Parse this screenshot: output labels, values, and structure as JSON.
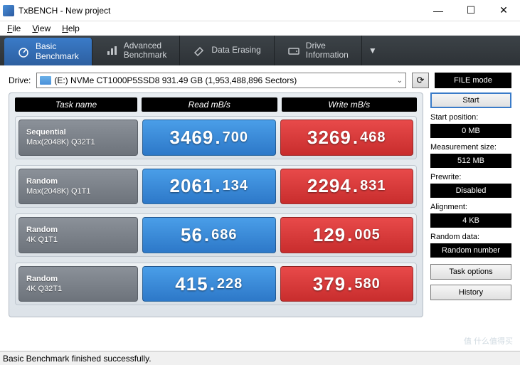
{
  "window": {
    "title": "TxBENCH - New project"
  },
  "menu": {
    "file": "File",
    "view": "View",
    "help": "Help"
  },
  "tabs": {
    "basic": "Basic\nBenchmark",
    "advanced": "Advanced\nBenchmark",
    "erasing": "Data Erasing",
    "drive": "Drive\nInformation"
  },
  "drive": {
    "label": "Drive:",
    "value": "(E:) NVMe CT1000P5SSD8  931.49 GB (1,953,488,896 Sectors)",
    "mode_button": "FILE mode"
  },
  "headers": {
    "task": "Task name",
    "read": "Read mB/s",
    "write": "Write mB/s"
  },
  "rows": [
    {
      "name1": "Sequential",
      "name2": "Max(2048K) Q32T1",
      "read_int": "3469",
      "read_frac": "700",
      "write_int": "3269",
      "write_frac": "468"
    },
    {
      "name1": "Random",
      "name2": "Max(2048K) Q1T1",
      "read_int": "2061",
      "read_frac": "134",
      "write_int": "2294",
      "write_frac": "831"
    },
    {
      "name1": "Random",
      "name2": "4K Q1T1",
      "read_int": "56",
      "read_frac": "686",
      "write_int": "129",
      "write_frac": "005"
    },
    {
      "name1": "Random",
      "name2": "4K Q32T1",
      "read_int": "415",
      "read_frac": "228",
      "write_int": "379",
      "write_frac": "580"
    }
  ],
  "side": {
    "start": "Start",
    "startpos_label": "Start position:",
    "startpos_value": "0 MB",
    "meassize_label": "Measurement size:",
    "meassize_value": "512 MB",
    "prewrite_label": "Prewrite:",
    "prewrite_value": "Disabled",
    "alignment_label": "Alignment:",
    "alignment_value": "4 KB",
    "data_label": "Random data:",
    "data_value": "Random number",
    "taskopt": "Task options",
    "history": "History"
  },
  "status": "Basic Benchmark finished successfully.",
  "colors": {
    "read_bg": "#3a8ada",
    "write_bg": "#d83a3a",
    "task_bg": "#7a8088",
    "tab_active": "#3a7bc8",
    "tabstrip": "#33383d"
  },
  "watermark": "值 什么值得买"
}
